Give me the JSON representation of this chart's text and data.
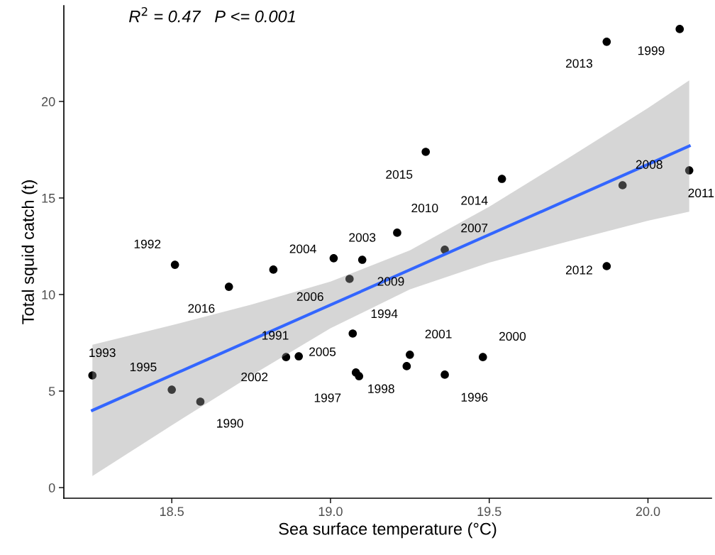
{
  "chart_data": {
    "type": "scatter",
    "xlabel": "Sea surface temperature (°C)",
    "ylabel": "Total squid catch (t)",
    "xlim": [
      18.16,
      20.2
    ],
    "ylim": [
      -0.55,
      24.96
    ],
    "xticks": [
      {
        "value": 18.5,
        "label": "18.5"
      },
      {
        "value": 19.0,
        "label": "19.0"
      },
      {
        "value": 19.5,
        "label": "19.5"
      },
      {
        "value": 20.0,
        "label": "20.0"
      }
    ],
    "yticks": [
      0,
      5,
      10,
      15,
      20
    ],
    "grid": false,
    "legend": false,
    "marker": "circle",
    "series": [
      {
        "color": "#000000",
        "x": [
          18.25,
          18.5,
          18.59,
          18.51,
          18.68,
          18.82,
          18.86,
          18.9,
          19.01,
          19.1,
          19.06,
          19.07,
          19.08,
          19.09,
          19.24,
          19.25,
          19.3,
          19.21,
          19.36,
          19.36,
          19.48,
          19.54,
          19.87,
          19.87,
          20.1,
          19.92,
          20.13
        ],
        "values": [
          5.81,
          5.07,
          4.45,
          11.54,
          10.4,
          11.29,
          6.76,
          6.8,
          11.88,
          11.8,
          10.81,
          7.98,
          5.96,
          5.77,
          6.29,
          6.88,
          17.39,
          13.2,
          12.32,
          5.85,
          6.76,
          15.99,
          11.47,
          23.09,
          23.75,
          15.66,
          16.43
        ]
      },
      {
        "type": "line",
        "marker": "none",
        "color": "#3366ff",
        "x": [
          18.25,
          18.5,
          18.75,
          19.0,
          19.25,
          19.5,
          19.75,
          20.0,
          20.13
        ],
        "values": [
          4.0,
          5.82,
          7.64,
          9.46,
          11.28,
          13.1,
          14.92,
          16.74,
          17.69
        ],
        "lower": [
          0.6,
          3.23,
          5.8,
          8.25,
          10.27,
          11.65,
          12.76,
          13.82,
          14.29
        ],
        "upper": [
          7.4,
          8.41,
          9.48,
          10.67,
          12.29,
          14.55,
          17.08,
          19.66,
          21.09
        ]
      }
    ],
    "annotations": [
      "R$^{2}$ = 0.47   P <= 0.001",
      {
        "text": "1993",
        "x": 18.25,
        "y": 5.81
      },
      {
        "text": "1995",
        "x": 18.5,
        "y": 5.07
      },
      {
        "text": "1990",
        "x": 18.59,
        "y": 4.45
      },
      {
        "text": "1992",
        "x": 18.51,
        "y": 11.54
      },
      {
        "text": "2016",
        "x": 18.68,
        "y": 10.4
      },
      {
        "text": "2004",
        "x": 18.82,
        "y": 11.29
      },
      {
        "text": "1991",
        "x": 18.86,
        "y": 6.76
      },
      {
        "text": "2002",
        "x": 18.9,
        "y": 6.8
      },
      {
        "text": "2003",
        "x": 19.01,
        "y": 11.88
      },
      {
        "text": "2009",
        "x": 19.1,
        "y": 11.8
      },
      {
        "text": "2006",
        "x": 19.06,
        "y": 10.81
      },
      {
        "text": "1994",
        "x": 19.07,
        "y": 7.98
      },
      {
        "text": "2005",
        "x": 19.08,
        "y": 5.96
      },
      {
        "text": "1997",
        "x": 19.09,
        "y": 5.77
      },
      {
        "text": "1998",
        "x": 19.24,
        "y": 6.29
      },
      {
        "text": "2001",
        "x": 19.25,
        "y": 6.88
      },
      {
        "text": "2015",
        "x": 19.3,
        "y": 17.39
      },
      {
        "text": "2010",
        "x": 19.21,
        "y": 13.2
      },
      {
        "text": "2007",
        "x": 19.36,
        "y": 12.32
      },
      {
        "text": "1996",
        "x": 19.36,
        "y": 5.85
      },
      {
        "text": "2000",
        "x": 19.48,
        "y": 6.76
      },
      {
        "text": "2014",
        "x": 19.54,
        "y": 15.99
      },
      {
        "text": "2012",
        "x": 19.87,
        "y": 11.47
      },
      {
        "text": "2013",
        "x": 19.87,
        "y": 23.09
      },
      {
        "text": "1999",
        "x": 20.1,
        "y": 23.75
      },
      {
        "text": "2008",
        "x": 19.92,
        "y": 15.66
      },
      {
        "text": "2011",
        "x": 20.13,
        "y": 16.43
      }
    ]
  }
}
